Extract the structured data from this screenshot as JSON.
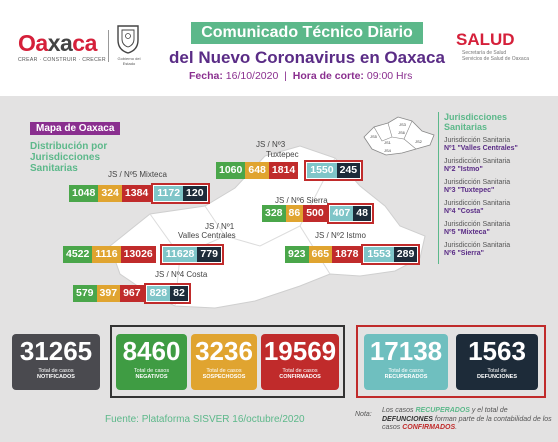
{
  "header": {
    "logo_word_a": "Oa",
    "logo_word_x": "xa",
    "logo_word_b": "ca",
    "logo_tagline": "CREAR · CONSTRUIR · CRECER",
    "shield_caption": "Gobierno del Estado",
    "title_line1": "Comunicado Técnico Diario",
    "title_line2": "del Nuevo Coronavirus en Oaxaca",
    "date_label": "Fecha:",
    "date_value": "16/10/2020",
    "separator": "|",
    "cut_label": "Hora de corte:",
    "cut_value": "09:00 Hrs",
    "salud": "SALUD",
    "salud_sub1": "Secretaría de Salud",
    "salud_sub2": "Servicios de Salud de Oaxaca"
  },
  "map": {
    "title": "Mapa de Oaxaca",
    "subtitle": "Distribución por Jurisdicciones Sanitarias",
    "jurisdictions": [
      {
        "label": "JS / Nº5 Mixteca",
        "values": [
          "1048",
          "324",
          "1384",
          "1172",
          "120"
        ]
      },
      {
        "label_a": "JS / Nº3",
        "label_b": "Tuxtepec",
        "values": [
          "1060",
          "648",
          "1814",
          "1550",
          "245"
        ]
      },
      {
        "label": "JS / Nº6 Sierra",
        "values": [
          "328",
          "86",
          "500",
          "407",
          "48"
        ]
      },
      {
        "label_a": "JS / Nº1",
        "label_b": "Valles Centrales",
        "values": [
          "4522",
          "1116",
          "13026",
          "11628",
          "779"
        ]
      },
      {
        "label": "JS / Nº2 Istmo",
        "values": [
          "923",
          "665",
          "1878",
          "1553",
          "289"
        ]
      },
      {
        "label": "JS / Nº4 Costa",
        "values": [
          "579",
          "397",
          "967",
          "828",
          "82"
        ]
      }
    ],
    "mini_map_labels": [
      "JS3",
      "JS5",
      "JS6",
      "JS1",
      "JS2",
      "JS4"
    ]
  },
  "legend": {
    "title": "Jurisdicciones Sanitarias",
    "items": [
      {
        "prefix": "Jurisdicción Sanitaria",
        "name": "Nº1 \"Valles Centrales\""
      },
      {
        "prefix": "Jurisdicción Sanitaria",
        "name": "Nº2 \"Istmo\""
      },
      {
        "prefix": "Jurisdicción Sanitaria",
        "name": "Nº3 \"Tuxtepec\""
      },
      {
        "prefix": "Jurisdicción Sanitaria",
        "name": "Nº4 \"Costa\""
      },
      {
        "prefix": "Jurisdicción Sanitaria",
        "name": "Nº5 \"Mixteca\""
      },
      {
        "prefix": "Jurisdicción Sanitaria",
        "name": "Nº6 \"Sierra\""
      }
    ]
  },
  "totals": [
    {
      "value": "31265",
      "cap_a": "Total de casos",
      "cap_b": "NOTIFICADOS",
      "color": "#4a4a4f"
    },
    {
      "value": "8460",
      "cap_a": "Total de casos",
      "cap_b": "NEGATIVOS",
      "color": "#3f9c43"
    },
    {
      "value": "3236",
      "cap_a": "Total de casos",
      "cap_b": "SOSPECHOSOS",
      "color": "#e0a430"
    },
    {
      "value": "19569",
      "cap_a": "Total de casos",
      "cap_b": "CONFIRMADOS",
      "color": "#c02b2b"
    },
    {
      "value": "17138",
      "cap_a": "Total de casos",
      "cap_b": "RECUPERADOS",
      "color": "#6fbfbf"
    },
    {
      "value": "1563",
      "cap_a": "Total de",
      "cap_b": "DEFUNCIONES",
      "color": "#1d2b39"
    }
  ],
  "footer": {
    "source": "Fuente: Plataforma SISVER 16/octubre/2020",
    "note_label": "Nota:",
    "note_1": "Los casos ",
    "note_rec": "RECUPERADOS",
    "note_2": " y el total de ",
    "note_def": "DEFUNCIONES",
    "note_3": " forman parte de la contabilidad de los casos ",
    "note_conf": "CONFIRMADOS",
    "note_4": "."
  },
  "colors": {
    "green": "#4aa64a",
    "yellow": "#e0a430",
    "red": "#c02b2b",
    "teal": "#7fc5c8",
    "navy": "#1d2b39",
    "purple": "#8a2f8f",
    "mint": "#5cb88a"
  }
}
